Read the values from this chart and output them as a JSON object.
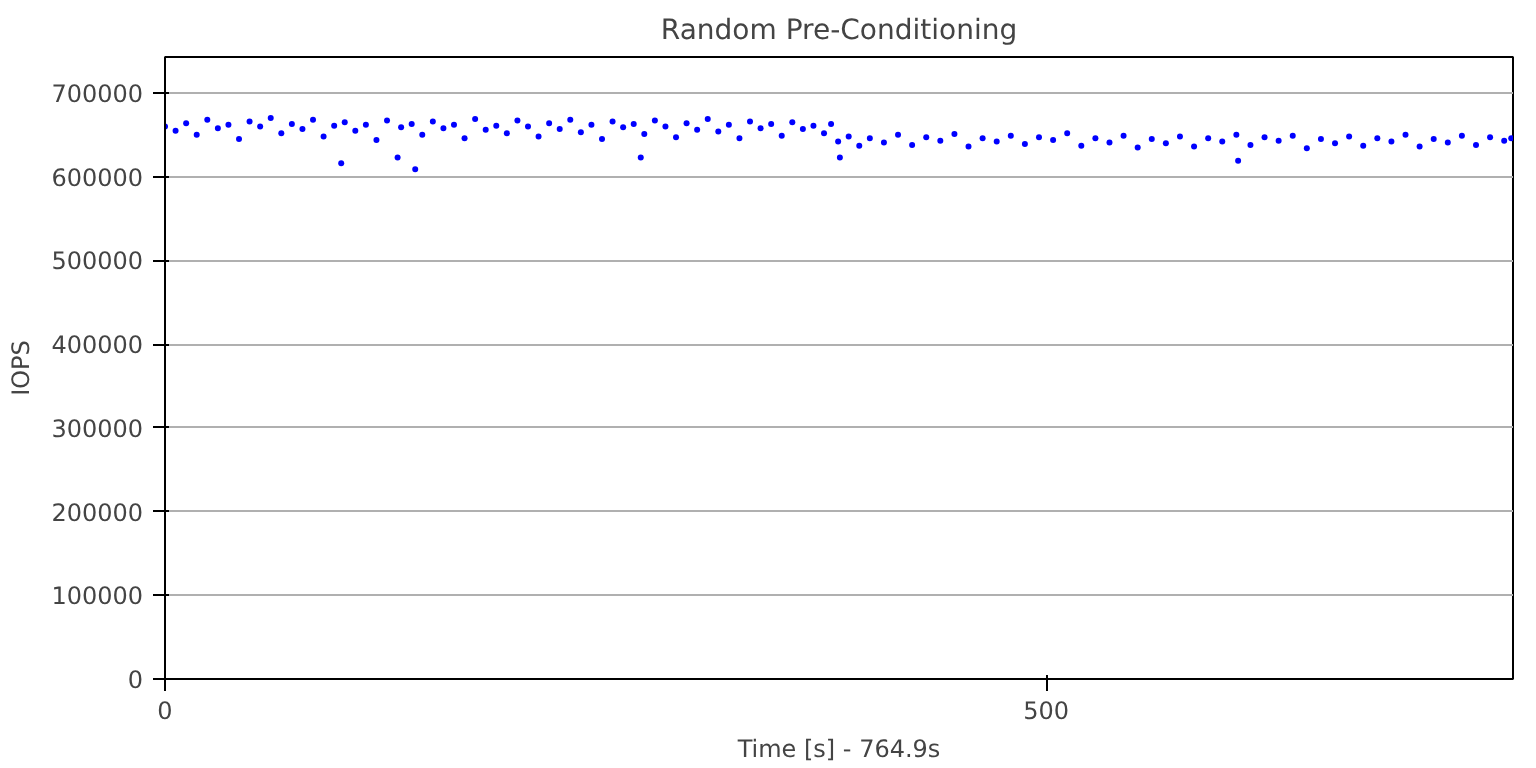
{
  "chart_data": {
    "type": "scatter",
    "title": "Random Pre-Conditioning",
    "xlabel": "Time [s] - 764.9s",
    "ylabel": "IOPS",
    "xlim": [
      0,
      765
    ],
    "xticks": [
      0,
      500
    ],
    "ylim": [
      0,
      743000
    ],
    "yticks": [
      0,
      100000,
      200000,
      300000,
      400000,
      500000,
      600000,
      700000
    ],
    "grid": "y",
    "marker": "circle",
    "series": [
      {
        "color": "#0000ff",
        "x": [
          0,
          6,
          12,
          18,
          24,
          30,
          36,
          42,
          48,
          54,
          60,
          66,
          72,
          78,
          84,
          90,
          96,
          100,
          102,
          108,
          114,
          120,
          126,
          132,
          134,
          140,
          142,
          146,
          152,
          158,
          164,
          170,
          176,
          182,
          188,
          194,
          200,
          206,
          212,
          218,
          224,
          230,
          236,
          242,
          248,
          254,
          260,
          266,
          270,
          272,
          278,
          284,
          290,
          296,
          302,
          308,
          314,
          320,
          326,
          332,
          338,
          344,
          350,
          356,
          362,
          368,
          374,
          378,
          382,
          383,
          388,
          394,
          400,
          408,
          416,
          424,
          432,
          440,
          448,
          456,
          464,
          472,
          480,
          488,
          496,
          504,
          512,
          520,
          528,
          536,
          544,
          552,
          560,
          568,
          576,
          584,
          592,
          600,
          608,
          609,
          616,
          624,
          632,
          640,
          648,
          656,
          664,
          672,
          680,
          688,
          696,
          704,
          712,
          720,
          728,
          736,
          744,
          752,
          760,
          764
        ],
        "values": [
          660000,
          655000,
          664000,
          650000,
          668000,
          658000,
          662000,
          645000,
          666000,
          660000,
          670000,
          652000,
          663000,
          657000,
          668000,
          648000,
          661000,
          616000,
          665000,
          655000,
          662000,
          644000,
          667000,
          623000,
          659000,
          663000,
          609000,
          650000,
          666000,
          658000,
          662000,
          646000,
          669000,
          656000,
          661000,
          652000,
          667000,
          660000,
          648000,
          664000,
          657000,
          668000,
          653000,
          662000,
          645000,
          666000,
          659000,
          663000,
          623000,
          651000,
          667000,
          660000,
          647000,
          664000,
          656000,
          669000,
          654000,
          662000,
          646000,
          666000,
          658000,
          663000,
          649000,
          665000,
          657000,
          661000,
          652000,
          663000,
          642000,
          623000,
          648000,
          637000,
          646000,
          641000,
          650000,
          638000,
          647000,
          643000,
          651000,
          636000,
          646000,
          642000,
          649000,
          639000,
          647000,
          644000,
          652000,
          637000,
          646000,
          641000,
          649000,
          635000,
          645000,
          640000,
          648000,
          636000,
          646000,
          642000,
          650000,
          619000,
          638000,
          647000,
          643000,
          649000,
          634000,
          645000,
          640000,
          648000,
          637000,
          646000,
          642000,
          650000,
          636000,
          645000,
          641000,
          649000,
          638000,
          647000,
          643000,
          646000
        ]
      }
    ]
  }
}
